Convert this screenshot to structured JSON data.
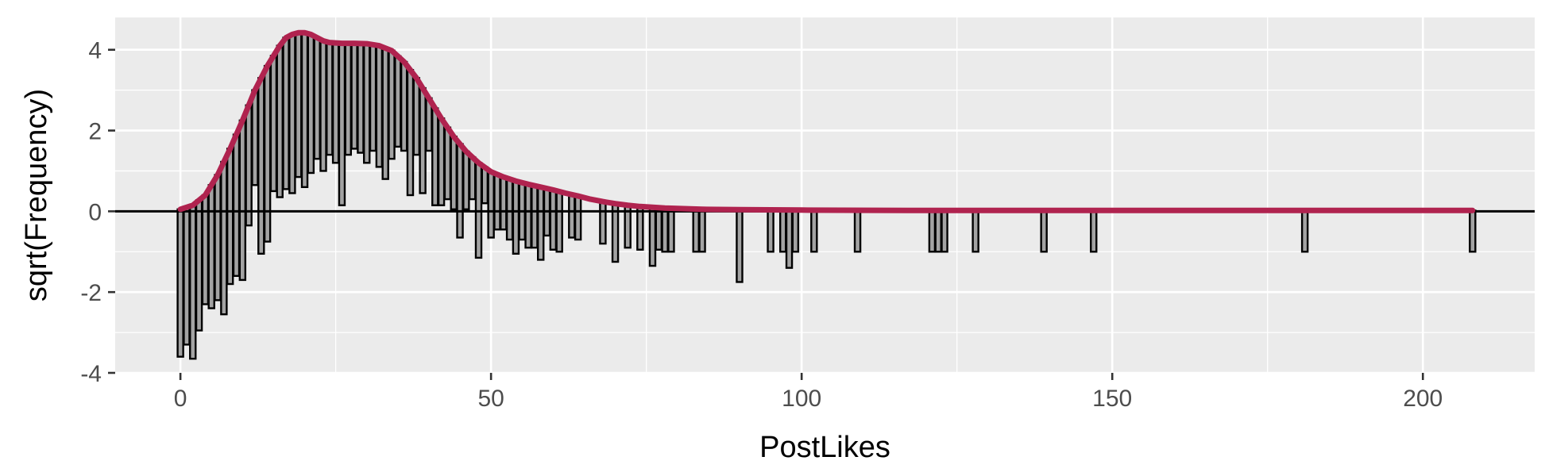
{
  "chart_data": {
    "type": "bar",
    "subtype": "hanging rootogram",
    "title": "",
    "xlabel": "PostLikes",
    "ylabel": "sqrt(Frequency)",
    "xlim": [
      -10.5,
      218
    ],
    "ylim": [
      -4,
      4.8
    ],
    "xticks": [
      0,
      50,
      100,
      150,
      200
    ],
    "yticks": [
      -4,
      -2,
      0,
      2,
      4
    ],
    "grid": true,
    "legend": "none",
    "colors": {
      "panel": "#ebebeb",
      "grid": "#ffffff",
      "bar_fill": "#a3a3a3",
      "bar_edge": "#000000",
      "curve": "#b0234f",
      "reference_line": "#000000",
      "tick_text": "#4d4d4d"
    },
    "bars": [
      {
        "x": 0,
        "bottom": -3.6
      },
      {
        "x": 1,
        "bottom": -3.3
      },
      {
        "x": 2,
        "bottom": -3.65
      },
      {
        "x": 3,
        "bottom": -2.95
      },
      {
        "x": 4,
        "bottom": -2.3
      },
      {
        "x": 5,
        "bottom": -2.4
      },
      {
        "x": 6,
        "bottom": -2.2
      },
      {
        "x": 7,
        "bottom": -2.55
      },
      {
        "x": 8,
        "bottom": -1.8
      },
      {
        "x": 9,
        "bottom": -1.6
      },
      {
        "x": 10,
        "bottom": -1.7
      },
      {
        "x": 11,
        "bottom": -0.35
      },
      {
        "x": 12,
        "bottom": 0.65
      },
      {
        "x": 13,
        "bottom": -1.05
      },
      {
        "x": 14,
        "bottom": -0.75
      },
      {
        "x": 15,
        "bottom": 0.5
      },
      {
        "x": 16,
        "bottom": 0.35
      },
      {
        "x": 17,
        "bottom": 0.55
      },
      {
        "x": 18,
        "bottom": 0.45
      },
      {
        "x": 19,
        "bottom": 0.85
      },
      {
        "x": 20,
        "bottom": 0.6
      },
      {
        "x": 21,
        "bottom": 0.95
      },
      {
        "x": 22,
        "bottom": 1.3
      },
      {
        "x": 23,
        "bottom": 1.0
      },
      {
        "x": 24,
        "bottom": 1.4
      },
      {
        "x": 25,
        "bottom": 1.2
      },
      {
        "x": 26,
        "bottom": 0.15
      },
      {
        "x": 27,
        "bottom": 1.4
      },
      {
        "x": 28,
        "bottom": 1.55
      },
      {
        "x": 29,
        "bottom": 1.45
      },
      {
        "x": 30,
        "bottom": 1.2
      },
      {
        "x": 31,
        "bottom": 1.5
      },
      {
        "x": 32,
        "bottom": 1.1
      },
      {
        "x": 33,
        "bottom": 0.8
      },
      {
        "x": 34,
        "bottom": 1.3
      },
      {
        "x": 35,
        "bottom": 1.6
      },
      {
        "x": 36,
        "bottom": 1.5
      },
      {
        "x": 37,
        "bottom": 0.4
      },
      {
        "x": 38,
        "bottom": 1.4
      },
      {
        "x": 39,
        "bottom": 0.45
      },
      {
        "x": 40,
        "bottom": 1.5
      },
      {
        "x": 41,
        "bottom": 0.15
      },
      {
        "x": 42,
        "bottom": 0.15
      },
      {
        "x": 43,
        "bottom": 0.3
      },
      {
        "x": 44,
        "bottom": 0.05
      },
      {
        "x": 45,
        "bottom": -0.65
      },
      {
        "x": 46,
        "bottom": 0.05
      },
      {
        "x": 47,
        "bottom": 0.3
      },
      {
        "x": 48,
        "bottom": -1.15
      },
      {
        "x": 49,
        "bottom": 0.2
      },
      {
        "x": 50,
        "bottom": -0.65
      },
      {
        "x": 51,
        "bottom": -0.45
      },
      {
        "x": 52,
        "bottom": -0.45
      },
      {
        "x": 53,
        "bottom": -0.7
      },
      {
        "x": 54,
        "bottom": -1.05
      },
      {
        "x": 55,
        "bottom": -0.7
      },
      {
        "x": 56,
        "bottom": -0.9
      },
      {
        "x": 57,
        "bottom": -0.9
      },
      {
        "x": 58,
        "bottom": -1.2
      },
      {
        "x": 59,
        "bottom": -0.6
      },
      {
        "x": 60,
        "bottom": -0.95
      },
      {
        "x": 61,
        "bottom": -1.0
      },
      {
        "x": 63,
        "bottom": -0.65
      },
      {
        "x": 64,
        "bottom": -0.7
      },
      {
        "x": 68,
        "bottom": -0.8
      },
      {
        "x": 70,
        "bottom": -1.25
      },
      {
        "x": 72,
        "bottom": -0.9
      },
      {
        "x": 74,
        "bottom": -0.95
      },
      {
        "x": 76,
        "bottom": -1.35
      },
      {
        "x": 77,
        "bottom": -0.95
      },
      {
        "x": 78,
        "bottom": -1.0
      },
      {
        "x": 79,
        "bottom": -1.0
      },
      {
        "x": 83,
        "bottom": -1.0
      },
      {
        "x": 84,
        "bottom": -1.0
      },
      {
        "x": 90,
        "bottom": -1.75
      },
      {
        "x": 95,
        "bottom": -1.0
      },
      {
        "x": 97,
        "bottom": -1.0
      },
      {
        "x": 98,
        "bottom": -1.4
      },
      {
        "x": 99,
        "bottom": -1.0
      },
      {
        "x": 102,
        "bottom": -1.0
      },
      {
        "x": 109,
        "bottom": -1.0
      },
      {
        "x": 121,
        "bottom": -1.0
      },
      {
        "x": 122,
        "bottom": -1.0
      },
      {
        "x": 123,
        "bottom": -1.0
      },
      {
        "x": 128,
        "bottom": -1.0
      },
      {
        "x": 139,
        "bottom": -1.0
      },
      {
        "x": 147,
        "bottom": -1.0
      },
      {
        "x": 181,
        "bottom": -1.0
      },
      {
        "x": 208,
        "bottom": -1.0
      }
    ],
    "curve": {
      "x": [
        0,
        2,
        4,
        6,
        8,
        10,
        12,
        14,
        16,
        17,
        18,
        19,
        20,
        21,
        22,
        23,
        24,
        26,
        28,
        30,
        32,
        34,
        36,
        38,
        40,
        42,
        44,
        46,
        48,
        50,
        52,
        54,
        56,
        58,
        60,
        62,
        64,
        66,
        68,
        70,
        72,
        74,
        76,
        78,
        80,
        84,
        90,
        100,
        120,
        150,
        180,
        208
      ],
      "y": [
        0.05,
        0.15,
        0.4,
        0.9,
        1.55,
        2.25,
        3.0,
        3.6,
        4.1,
        4.3,
        4.38,
        4.42,
        4.42,
        4.38,
        4.3,
        4.22,
        4.18,
        4.16,
        4.16,
        4.15,
        4.1,
        3.98,
        3.7,
        3.3,
        2.8,
        2.3,
        1.85,
        1.48,
        1.2,
        0.98,
        0.85,
        0.75,
        0.67,
        0.6,
        0.53,
        0.45,
        0.38,
        0.3,
        0.24,
        0.19,
        0.15,
        0.12,
        0.1,
        0.08,
        0.07,
        0.05,
        0.04,
        0.03,
        0.02,
        0.02,
        0.02,
        0.02
      ]
    }
  }
}
